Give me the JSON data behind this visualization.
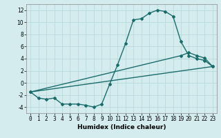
{
  "title": "",
  "xlabel": "Humidex (Indice chaleur)",
  "ylabel": "",
  "background_color": "#d4ecee",
  "grid_color": "#b8d8da",
  "line_color": "#1a6b6b",
  "xlim": [
    -0.5,
    23.5
  ],
  "ylim": [
    -5,
    13
  ],
  "xticks": [
    0,
    1,
    2,
    3,
    4,
    5,
    6,
    7,
    8,
    9,
    10,
    11,
    12,
    13,
    14,
    15,
    16,
    17,
    18,
    19,
    20,
    21,
    22,
    23
  ],
  "yticks": [
    -4,
    -2,
    0,
    2,
    4,
    6,
    8,
    10,
    12
  ],
  "line1_x": [
    0,
    1,
    2,
    3,
    4,
    5,
    6,
    7,
    8,
    9,
    10,
    11,
    12,
    13,
    14,
    15,
    16,
    17,
    18,
    19,
    20,
    21,
    22,
    23
  ],
  "line1_y": [
    -1.5,
    -2.5,
    -2.7,
    -2.5,
    -3.5,
    -3.5,
    -3.5,
    -3.7,
    -4.0,
    -3.5,
    -0.2,
    3.0,
    6.5,
    10.4,
    10.6,
    11.5,
    12.0,
    11.8,
    11.0,
    6.8,
    4.5,
    4.0,
    3.7,
    2.7
  ],
  "line2_x": [
    0,
    23
  ],
  "line2_y": [
    -1.5,
    2.7
  ],
  "line3_x": [
    0,
    19,
    20,
    21,
    22,
    23
  ],
  "line3_y": [
    -1.5,
    4.5,
    5.0,
    4.5,
    4.1,
    2.7
  ],
  "marker": "D",
  "markersize": 2.0,
  "linewidth": 1.0,
  "xlabel_fontsize": 6.5,
  "tick_fontsize": 5.5
}
